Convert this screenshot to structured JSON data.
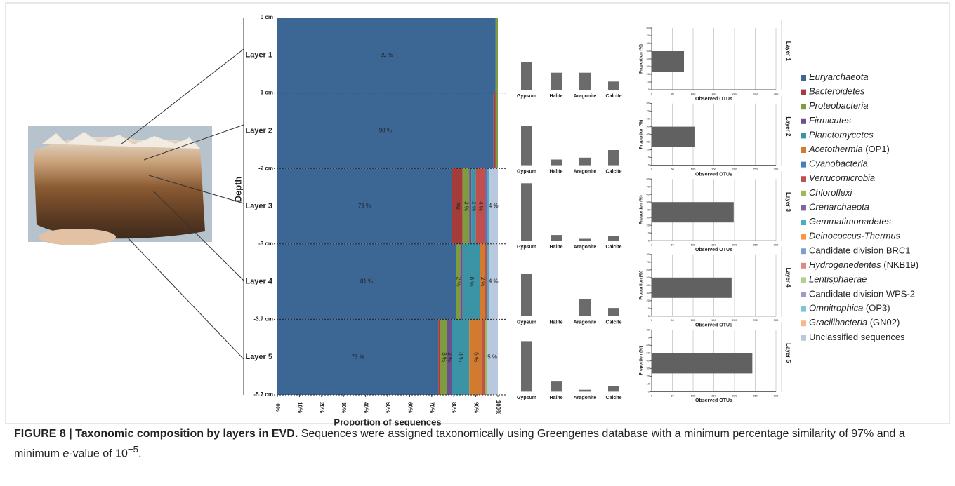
{
  "chart_data": [
    {
      "type": "stacked-hbar",
      "categories": [
        "Layer 1",
        "Layer 2",
        "Layer 3",
        "Layer 4",
        "Layer 5"
      ],
      "depth_labels": [
        "0 cm",
        "-1 cm",
        "-2 cm",
        "-3 cm",
        "-3.7 cm",
        "-5.7 cm"
      ],
      "ylabel": "Depth",
      "xlabel": "Proportion of sequences",
      "xlim": [
        0,
        100
      ],
      "xticks": [
        {
          "value": 0,
          "label": "0%"
        },
        {
          "value": 10,
          "label": "10%"
        },
        {
          "value": 20,
          "label": "20%"
        },
        {
          "value": 30,
          "label": "30%"
        },
        {
          "value": 40,
          "label": "40%"
        },
        {
          "value": 50,
          "label": "50%"
        },
        {
          "value": 60,
          "label": "60%"
        },
        {
          "value": 70,
          "label": "70%"
        },
        {
          "value": 80,
          "label": "80%"
        },
        {
          "value": 90,
          "label": "90%"
        },
        {
          "value": 100,
          "label": "100%"
        }
      ],
      "series": [
        {
          "name": "Euryarchaeota",
          "italic": true,
          "color": "#3c6795",
          "values": [
            99,
            98,
            79,
            81,
            73
          ],
          "value_labels": [
            "99 %",
            "98 %",
            "79 %",
            "81 %",
            "73 %"
          ]
        },
        {
          "name": "Bacteroidetes",
          "italic": true,
          "color": "#a33c3a",
          "values": [
            0,
            1,
            5,
            0,
            1
          ],
          "value_labels": [
            null,
            null,
            "5%",
            null,
            null
          ]
        },
        {
          "name": "Proteobacteria",
          "italic": true,
          "color": "#7d9c3e",
          "values": [
            1,
            1,
            3,
            2,
            3
          ],
          "value_labels": [
            null,
            null,
            "3 %",
            "2 %",
            "3 %"
          ]
        },
        {
          "name": "Firmicutes",
          "italic": true,
          "color": "#6b5090",
          "values": [
            0,
            0,
            1,
            1,
            2
          ],
          "value_labels": [
            null,
            null,
            null,
            null,
            "2 %"
          ]
        },
        {
          "name": "Planctomycetes",
          "italic": true,
          "color": "#3b93a6",
          "values": [
            0,
            0,
            2,
            8,
            8
          ],
          "value_labels": [
            null,
            null,
            "2 %",
            "8 %",
            "8 %"
          ]
        },
        {
          "name": "Acetothermia (OP1)",
          "italic": true,
          "color": "#d07b30",
          "values": [
            0,
            0,
            0,
            2,
            6
          ],
          "value_labels": [
            null,
            null,
            null,
            "2 %",
            "6 %"
          ]
        },
        {
          "name": "Cyanobacteria",
          "italic": true,
          "color": "#4a7dbe",
          "values": [
            0,
            0,
            0,
            0,
            0
          ]
        },
        {
          "name": "Verrucomicrobia",
          "italic": true,
          "color": "#c0504d",
          "values": [
            0,
            0,
            4,
            1,
            1
          ],
          "value_labels": [
            null,
            null,
            "4 %",
            null,
            null
          ]
        },
        {
          "name": "Chloroflexi",
          "italic": true,
          "color": "#9bbb59",
          "values": [
            0,
            0,
            0,
            0,
            1
          ]
        },
        {
          "name": "Crenarchaeota",
          "italic": true,
          "color": "#8064a2",
          "values": [
            0,
            0,
            1,
            0,
            0
          ]
        },
        {
          "name": "Gemmatimonadetes",
          "italic": true,
          "color": "#4bacc6",
          "values": [
            0,
            0,
            1,
            1,
            0
          ]
        },
        {
          "name": "Deinococcus-Thermus",
          "italic": true,
          "color": "#f79646",
          "values": [
            0,
            0,
            0,
            0,
            0
          ]
        },
        {
          "name": "Candidate division BRC1",
          "italic": false,
          "color": "#7f9fcf",
          "values": [
            0,
            0,
            0,
            0,
            0
          ]
        },
        {
          "name": "Hydrogenedentes (NKB19)",
          "italic": true,
          "color": "#d98b8a",
          "values": [
            0,
            0,
            0,
            0,
            0
          ]
        },
        {
          "name": "Lentisphaerae",
          "italic": true,
          "color": "#b5cf88",
          "values": [
            0,
            0,
            0,
            0,
            0
          ]
        },
        {
          "name": "Candidate division WPS-2",
          "italic": false,
          "color": "#a797c4",
          "values": [
            0,
            0,
            0,
            0,
            0
          ]
        },
        {
          "name": "Omnitrophica (OP3)",
          "italic": true,
          "color": "#83c3d6",
          "values": [
            0,
            0,
            0,
            0,
            0
          ]
        },
        {
          "name": "Gracilibacteria (GN02)",
          "italic": true,
          "color": "#f8b78a",
          "values": [
            0,
            0,
            0,
            0,
            0
          ]
        },
        {
          "name": "Unclassified sequences",
          "italic": false,
          "color": "#b7c8df",
          "values": [
            0,
            0,
            4,
            4,
            5
          ],
          "value_labels": [
            null,
            null,
            "4 %",
            "4 %",
            "5 %"
          ]
        }
      ]
    },
    {
      "type": "bar",
      "color": "#6b6b6b",
      "categories": [
        "Gypsum",
        "Halite",
        "Aragonite",
        "Calcite"
      ],
      "ylim": [
        0,
        100
      ],
      "values": [
        [
          44,
          27,
          27,
          13
        ],
        [
          62,
          9,
          12,
          24
        ],
        [
          91,
          9,
          3,
          7
        ],
        [
          67,
          0,
          27,
          13
        ],
        [
          80,
          17,
          3,
          9
        ]
      ]
    },
    {
      "type": "hbar",
      "color": "#616161",
      "row_labels": [
        "Layer 1",
        "Layer 2",
        "Layer 3",
        "Layer 4",
        "Layer 5"
      ],
      "values": [
        78,
        105,
        198,
        193,
        243
      ],
      "xlabel": "Observed OTUs",
      "ylabel": "Proportion (%)",
      "xlim": [
        0,
        300
      ],
      "xticks": [
        0,
        50,
        100,
        150,
        200,
        250,
        300
      ],
      "ylim": [
        0,
        80
      ],
      "yticks": [
        0,
        10,
        20,
        30,
        40,
        50,
        60,
        70,
        80
      ],
      "grid": true
    }
  ],
  "caption": {
    "label": "FIGURE 8 | Taxonomic composition by layers in EVD.",
    "parts": [
      "Sequences were assigned taxonomically using Greengenes database with a minimum percentage similarity of 97% and a minimum ",
      "e",
      "-value of 10",
      "−5",
      "."
    ]
  }
}
